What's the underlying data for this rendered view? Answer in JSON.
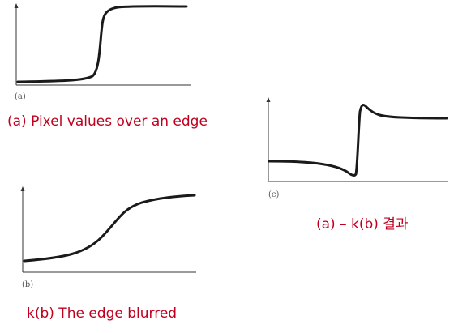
{
  "panels": {
    "a": {
      "tag": "(a)",
      "caption": "(a) Pixel values over an edge"
    },
    "b": {
      "tag": "(b)",
      "caption": "k(b) The edge blurred"
    },
    "c": {
      "tag": "(c)",
      "caption": "(a) – k(b) 결과"
    }
  },
  "colors": {
    "caption": "#c0001e",
    "curve": "#1a1a1a",
    "axis": "#333333"
  }
}
